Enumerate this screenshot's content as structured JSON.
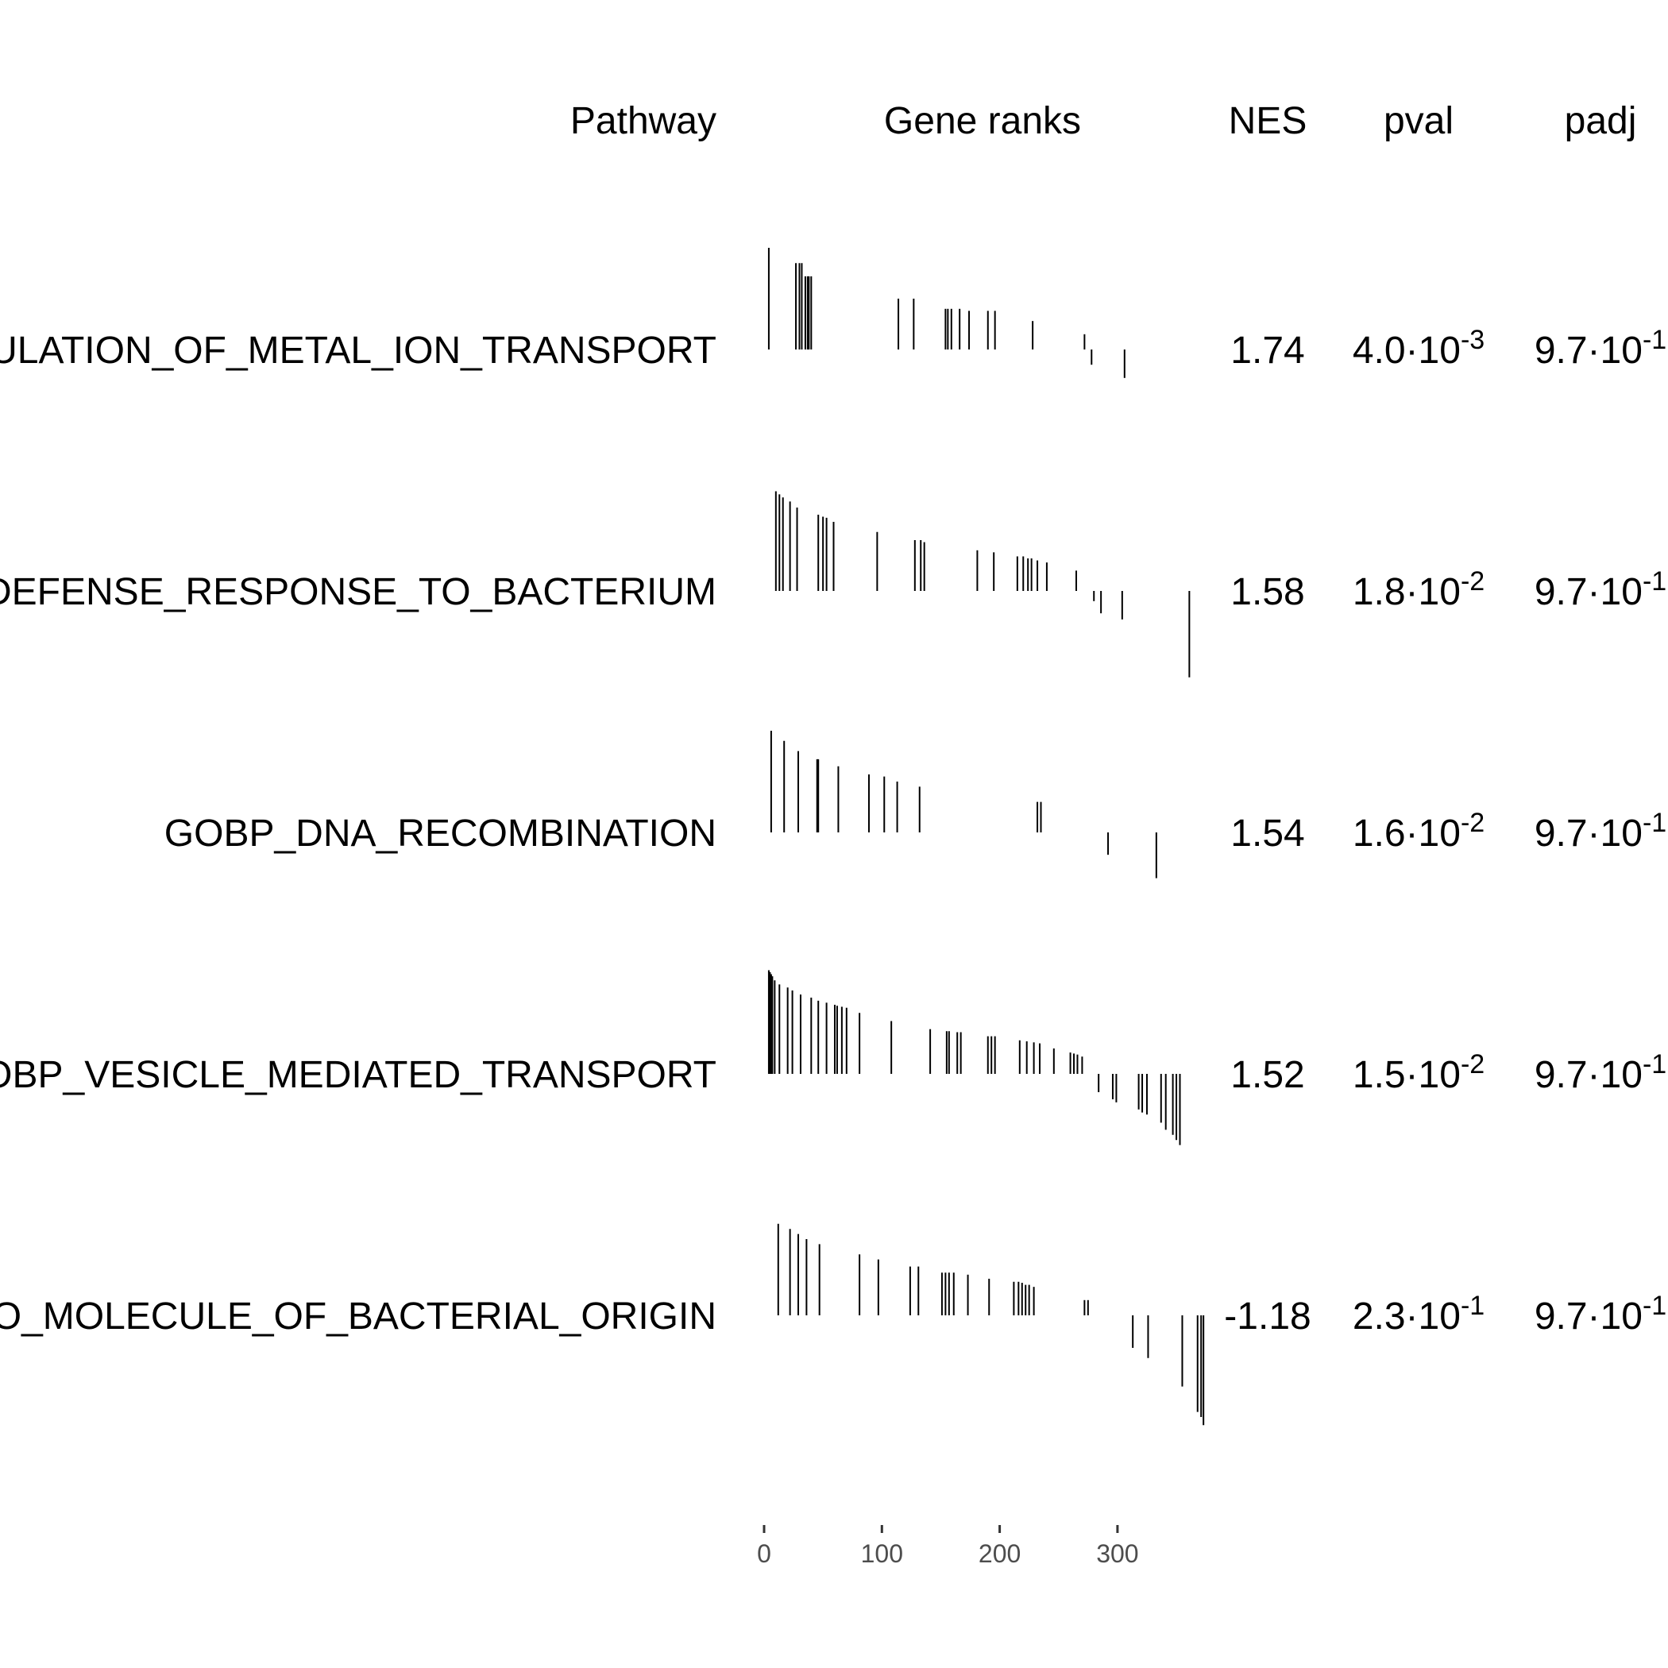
{
  "chart_data": {
    "type": "table",
    "columns": {
      "pathway": "Pathway",
      "gene_ranks": "Gene ranks",
      "nes": "NES",
      "pval": "pval",
      "padj": "padj"
    },
    "xaxis_ticks": [
      0,
      100,
      200,
      300
    ],
    "xlim": [
      0,
      375
    ],
    "rows": [
      {
        "pathway": "GOBP_POSITIVE_REGULATION_OF_METAL_ION_TRANSPORT",
        "nes": "1.74",
        "pval": {
          "mantissa": "4.0·10",
          "exponent": "-3"
        },
        "padj": {
          "mantissa": "9.7·10",
          "exponent": "-1"
        },
        "ticks": [
          [
            4,
            1.0
          ],
          [
            27,
            0.85
          ],
          [
            30,
            0.85
          ],
          [
            32,
            0.85
          ],
          [
            35,
            0.72
          ],
          [
            37,
            0.72
          ],
          [
            38,
            0.72
          ],
          [
            40,
            0.72
          ],
          [
            114,
            0.5
          ],
          [
            127,
            0.5
          ],
          [
            154,
            0.4
          ],
          [
            156,
            0.4
          ],
          [
            159,
            0.4
          ],
          [
            166,
            0.4
          ],
          [
            174,
            0.38
          ],
          [
            190,
            0.38
          ],
          [
            196,
            0.38
          ],
          [
            228,
            0.28
          ],
          [
            272,
            0.15
          ],
          [
            278,
            -0.15
          ],
          [
            306,
            -0.28
          ]
        ]
      },
      {
        "pathway": "GOBP_DEFENSE_RESPONSE_TO_BACTERIUM",
        "nes": "1.58",
        "pval": {
          "mantissa": "1.8·10",
          "exponent": "-2"
        },
        "padj": {
          "mantissa": "9.7·10",
          "exponent": "-1"
        },
        "ticks": [
          [
            10,
            0.98
          ],
          [
            13,
            0.95
          ],
          [
            16,
            0.92
          ],
          [
            22,
            0.88
          ],
          [
            28,
            0.82
          ],
          [
            46,
            0.75
          ],
          [
            50,
            0.73
          ],
          [
            53,
            0.72
          ],
          [
            59,
            0.68
          ],
          [
            96,
            0.58
          ],
          [
            128,
            0.5
          ],
          [
            133,
            0.5
          ],
          [
            136,
            0.48
          ],
          [
            181,
            0.4
          ],
          [
            195,
            0.38
          ],
          [
            215,
            0.34
          ],
          [
            220,
            0.34
          ],
          [
            224,
            0.32
          ],
          [
            227,
            0.32
          ],
          [
            232,
            0.3
          ],
          [
            240,
            0.28
          ],
          [
            265,
            0.2
          ],
          [
            280,
            -0.1
          ],
          [
            286,
            -0.22
          ],
          [
            304,
            -0.28
          ],
          [
            361,
            -0.85
          ]
        ]
      },
      {
        "pathway": "GOBP_DNA_RECOMBINATION",
        "nes": "1.54",
        "pval": {
          "mantissa": "1.6·10",
          "exponent": "-2"
        },
        "padj": {
          "mantissa": "9.7·10",
          "exponent": "-1"
        },
        "ticks": [
          [
            6,
            1.0
          ],
          [
            17,
            0.9
          ],
          [
            29,
            0.8
          ],
          [
            45,
            0.72
          ],
          [
            46,
            0.72
          ],
          [
            63,
            0.65
          ],
          [
            89,
            0.57
          ],
          [
            102,
            0.55
          ],
          [
            113,
            0.5
          ],
          [
            132,
            0.45
          ],
          [
            232,
            0.3
          ],
          [
            235,
            0.3
          ],
          [
            292,
            -0.22
          ],
          [
            333,
            -0.45
          ]
        ]
      },
      {
        "pathway": "GOBP_VESICLE_MEDIATED_TRANSPORT",
        "nes": "1.52",
        "pval": {
          "mantissa": "1.5·10",
          "exponent": "-2"
        },
        "padj": {
          "mantissa": "9.7·10",
          "exponent": "-1"
        },
        "ticks": [
          [
            4,
            1.02
          ],
          [
            5,
            1.0
          ],
          [
            6,
            0.98
          ],
          [
            7,
            0.96
          ],
          [
            9,
            0.92
          ],
          [
            13,
            0.88
          ],
          [
            20,
            0.85
          ],
          [
            24,
            0.82
          ],
          [
            31,
            0.78
          ],
          [
            40,
            0.75
          ],
          [
            46,
            0.72
          ],
          [
            53,
            0.7
          ],
          [
            60,
            0.68
          ],
          [
            62,
            0.67
          ],
          [
            66,
            0.66
          ],
          [
            70,
            0.65
          ],
          [
            81,
            0.6
          ],
          [
            108,
            0.52
          ],
          [
            141,
            0.44
          ],
          [
            155,
            0.42
          ],
          [
            157,
            0.42
          ],
          [
            164,
            0.41
          ],
          [
            167,
            0.41
          ],
          [
            190,
            0.37
          ],
          [
            193,
            0.37
          ],
          [
            196,
            0.37
          ],
          [
            217,
            0.33
          ],
          [
            223,
            0.32
          ],
          [
            229,
            0.31
          ],
          [
            234,
            0.3
          ],
          [
            246,
            0.25
          ],
          [
            260,
            0.21
          ],
          [
            263,
            0.2
          ],
          [
            266,
            0.19
          ],
          [
            270,
            0.17
          ],
          [
            284,
            -0.18
          ],
          [
            296,
            -0.25
          ],
          [
            299,
            -0.28
          ],
          [
            318,
            -0.35
          ],
          [
            321,
            -0.38
          ],
          [
            325,
            -0.4
          ],
          [
            337,
            -0.48
          ],
          [
            341,
            -0.55
          ],
          [
            347,
            -0.6
          ],
          [
            350,
            -0.65
          ],
          [
            353,
            -0.7
          ]
        ]
      },
      {
        "pathway": "GOBP_RESPONSE_TO_MOLECULE_OF_BACTERIAL_ORIGIN",
        "nes": "-1.18",
        "pval": {
          "mantissa": "2.3·10",
          "exponent": "-1"
        },
        "padj": {
          "mantissa": "9.7·10",
          "exponent": "-1"
        },
        "ticks": [
          [
            12,
            0.9
          ],
          [
            22,
            0.85
          ],
          [
            29,
            0.8
          ],
          [
            36,
            0.75
          ],
          [
            47,
            0.7
          ],
          [
            81,
            0.6
          ],
          [
            97,
            0.55
          ],
          [
            124,
            0.48
          ],
          [
            131,
            0.48
          ],
          [
            151,
            0.42
          ],
          [
            154,
            0.42
          ],
          [
            157,
            0.42
          ],
          [
            161,
            0.42
          ],
          [
            173,
            0.4
          ],
          [
            191,
            0.36
          ],
          [
            212,
            0.33
          ],
          [
            216,
            0.33
          ],
          [
            219,
            0.32
          ],
          [
            222,
            0.3
          ],
          [
            225,
            0.3
          ],
          [
            229,
            0.28
          ],
          [
            272,
            0.15
          ],
          [
            275,
            0.15
          ],
          [
            313,
            -0.32
          ],
          [
            326,
            -0.42
          ],
          [
            355,
            -0.7
          ],
          [
            368,
            -0.95
          ],
          [
            371,
            -1.0
          ],
          [
            373,
            -1.08
          ]
        ]
      }
    ]
  }
}
